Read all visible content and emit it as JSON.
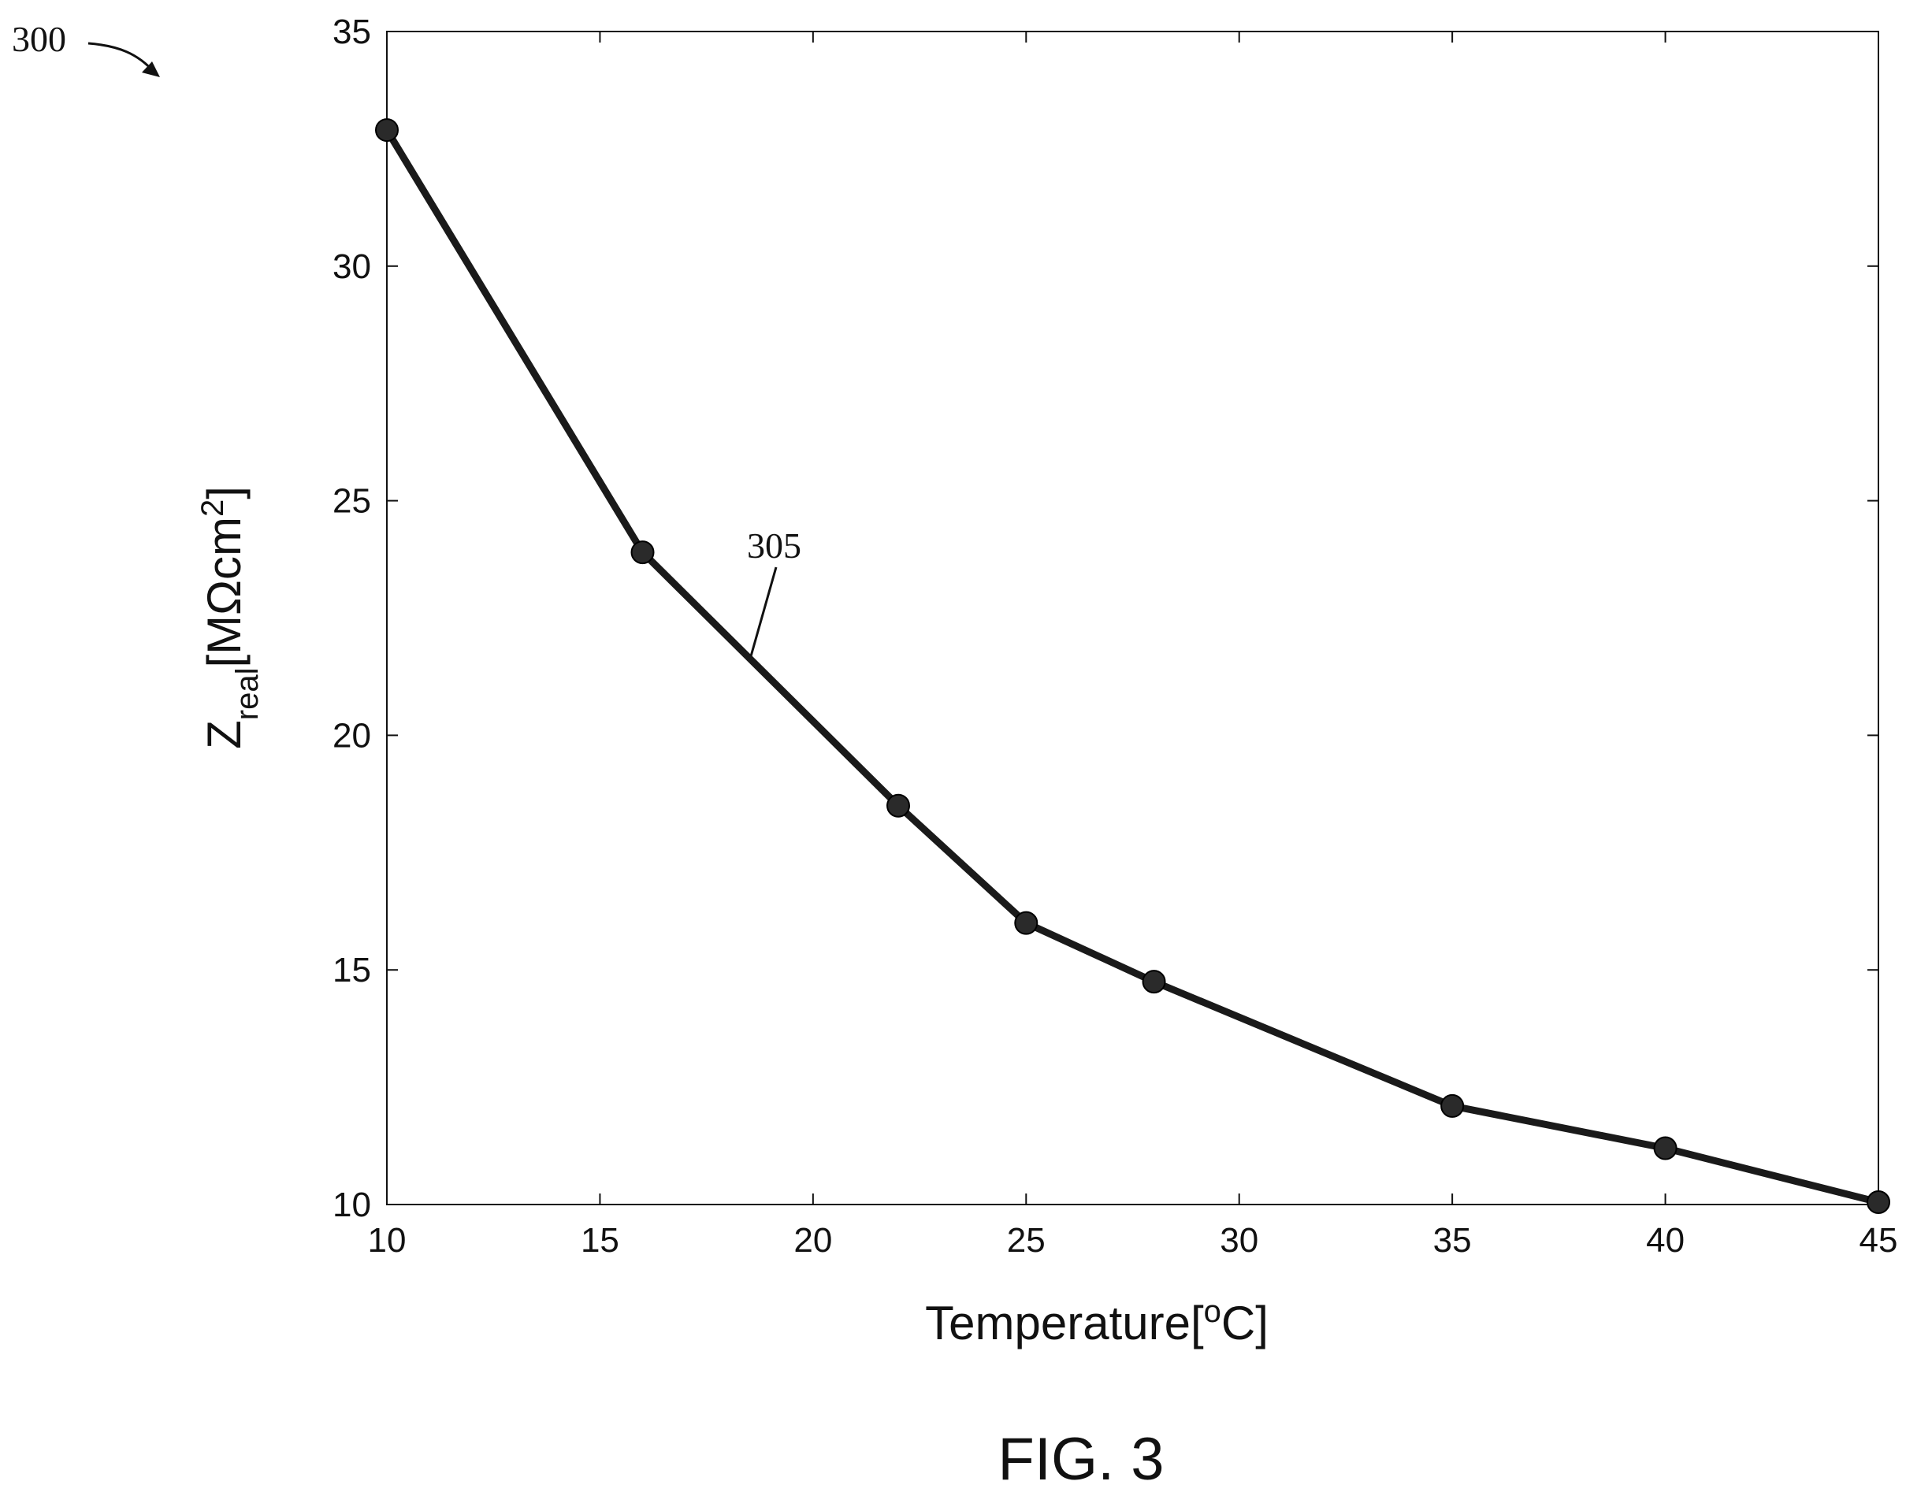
{
  "figure": {
    "ref_number": "300",
    "curve_ref": "305",
    "caption": "FIG. 3"
  },
  "chart_data": {
    "type": "line",
    "title": "",
    "xlabel": "Temperature[°C]",
    "ylabel": "Zreal[MΩcm²]",
    "ylabel_parts": {
      "base": "Z",
      "sub": "real",
      "unit_prefix": "[MΩcm",
      "unit_sup": "2",
      "unit_suffix": "]"
    },
    "xlabel_parts": {
      "prefix": "Temperature[",
      "sup": "o",
      "suffix": "C]"
    },
    "xlim": [
      10,
      45
    ],
    "ylim": [
      10,
      35
    ],
    "xticks": [
      10,
      15,
      20,
      25,
      30,
      35,
      40,
      45
    ],
    "yticks": [
      10,
      15,
      20,
      25,
      30,
      35
    ],
    "grid": false,
    "legend": "none",
    "series": [
      {
        "x": [
          10,
          16,
          22,
          25,
          28,
          35,
          40,
          45
        ],
        "y": [
          32.9,
          23.9,
          18.5,
          16.0,
          14.75,
          12.1,
          11.2,
          10.05
        ],
        "color": "#1a1a1a",
        "marker": "circle"
      }
    ]
  }
}
